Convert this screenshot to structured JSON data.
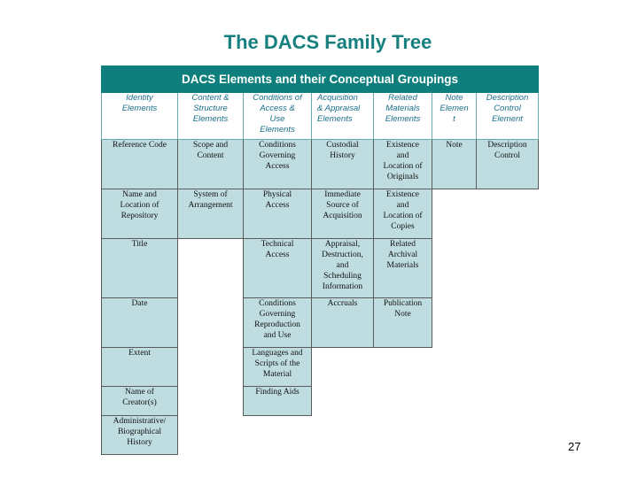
{
  "title": "The DACS Family Tree",
  "table": {
    "caption": "DACS Elements and their Conceptual Groupings",
    "headers": [
      "Identity\nElements",
      "Content &\nStructure\nElements",
      "Conditions of\nAccess &\nUse\nElements",
      "Acquisition\n& Appraisal\nElements",
      "Related\nMaterials\nElements",
      "Note\nElemen\nt",
      "Description\nControl\nElement"
    ],
    "rows": [
      [
        "Reference Code",
        "Scope and\nContent",
        "Conditions\nGoverning\nAccess",
        "Custodial\nHistory",
        "Existence\nand\nLocation of\nOriginals",
        "Note",
        "Description\nControl"
      ],
      [
        "Name and\nLocation of\nRepository",
        "System of\nArrangement",
        "Physical\nAccess",
        "Immediate\nSource of\nAcquisition",
        "Existence\nand\nLocation of\nCopies",
        "",
        ""
      ],
      [
        "Title",
        "",
        "Technical\nAccess",
        "Appraisal,\nDestruction,\nand\nScheduling\nInformation",
        "Related\nArchival\nMaterials",
        "",
        ""
      ],
      [
        "Date",
        "",
        "Conditions\nGoverning\nReproduction\nand Use",
        "Accruals",
        "Publication\nNote",
        "",
        ""
      ],
      [
        "Extent",
        "",
        "Languages and\nScripts of the\nMaterial",
        "",
        "",
        "",
        ""
      ],
      [
        "Name of\nCreator(s)",
        "",
        "Finding Aids",
        "",
        "",
        "",
        ""
      ],
      [
        "Administrative/\nBiographical\nHistory",
        "",
        "",
        "",
        "",
        "",
        ""
      ]
    ]
  },
  "page_number": "27"
}
